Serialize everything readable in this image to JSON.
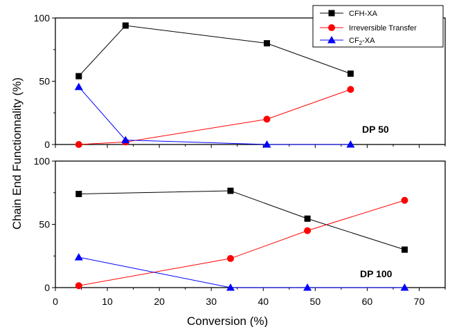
{
  "chart_data": {
    "type": "line",
    "xlabel": "Conversion (%)",
    "ylabel": "Chain End Functionnality (%)",
    "xlim": [
      0,
      75
    ],
    "x_ticks": [
      "0",
      "10",
      "20",
      "30",
      "40",
      "50",
      "60",
      "70"
    ],
    "legend_position": "top-right",
    "colors": {
      "CFH-XA": "#000000",
      "Irreversible Transfer": "#ff0000",
      "CF2-XA": "#0000ff"
    },
    "markers": {
      "CFH-XA": "square",
      "Irreversible Transfer": "circle",
      "CF2-XA": "triangle"
    },
    "legend": [
      {
        "name": "CFH-XA",
        "main": "CFH-XA",
        "sub": "",
        "tail": ""
      },
      {
        "name": "Irreversible Transfer",
        "main": "Irreversible Transfer",
        "sub": "",
        "tail": ""
      },
      {
        "name": "CF2-XA",
        "main": "CF",
        "sub": "2",
        "tail": "-XA"
      }
    ],
    "panels": [
      {
        "label": "DP 50",
        "ylim": [
          0,
          100
        ],
        "y_ticks": [
          "0",
          "50",
          "100"
        ],
        "series": [
          {
            "name": "CFH-XA",
            "x": [
              4.5,
              13.5,
              40.7,
              56.8
            ],
            "y": [
              54,
              94,
              80,
              56
            ]
          },
          {
            "name": "Irreversible Transfer",
            "x": [
              4.5,
              13.5,
              40.7,
              56.8
            ],
            "y": [
              0,
              2,
              20,
              43.5
            ]
          },
          {
            "name": "CF2-XA",
            "x": [
              4.5,
              13.5,
              40.7,
              56.8
            ],
            "y": [
              45.5,
              3.5,
              0,
              0
            ]
          }
        ]
      },
      {
        "label": "DP 100",
        "ylim": [
          0,
          100
        ],
        "y_ticks": [
          "0",
          "50",
          "100"
        ],
        "series": [
          {
            "name": "CFH-XA",
            "x": [
              4.5,
              33.7,
              48.5,
              67.2
            ],
            "y": [
              74,
              76.5,
              54.5,
              30
            ]
          },
          {
            "name": "Irreversible Transfer",
            "x": [
              4.5,
              33.7,
              48.5,
              67.2
            ],
            "y": [
              1.5,
              23,
              45,
              69
            ]
          },
          {
            "name": "CF2-XA",
            "x": [
              4.5,
              33.7,
              48.5,
              67.2
            ],
            "y": [
              24,
              0,
              0,
              0
            ]
          }
        ]
      }
    ]
  }
}
